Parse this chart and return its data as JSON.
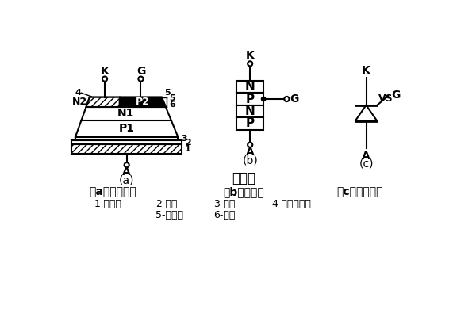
{
  "bg_color": "#ffffff",
  "line_color": "#000000",
  "title": "晶闸管",
  "sub_a": "（a）内部结构",
  "sub_b": "（b）示意图",
  "sub_c": "（c）表示符号",
  "label_a": "(a)",
  "label_b": "(b)",
  "label_c": "(c)",
  "leg1a": "1-钐底座",
  "leg1b": "2-鑡片",
  "leg1c": "3-锂片",
  "leg1d": "4-金锰合金片",
  "leg2a": "5-金钔片",
  "leg2b": "6-硅片"
}
